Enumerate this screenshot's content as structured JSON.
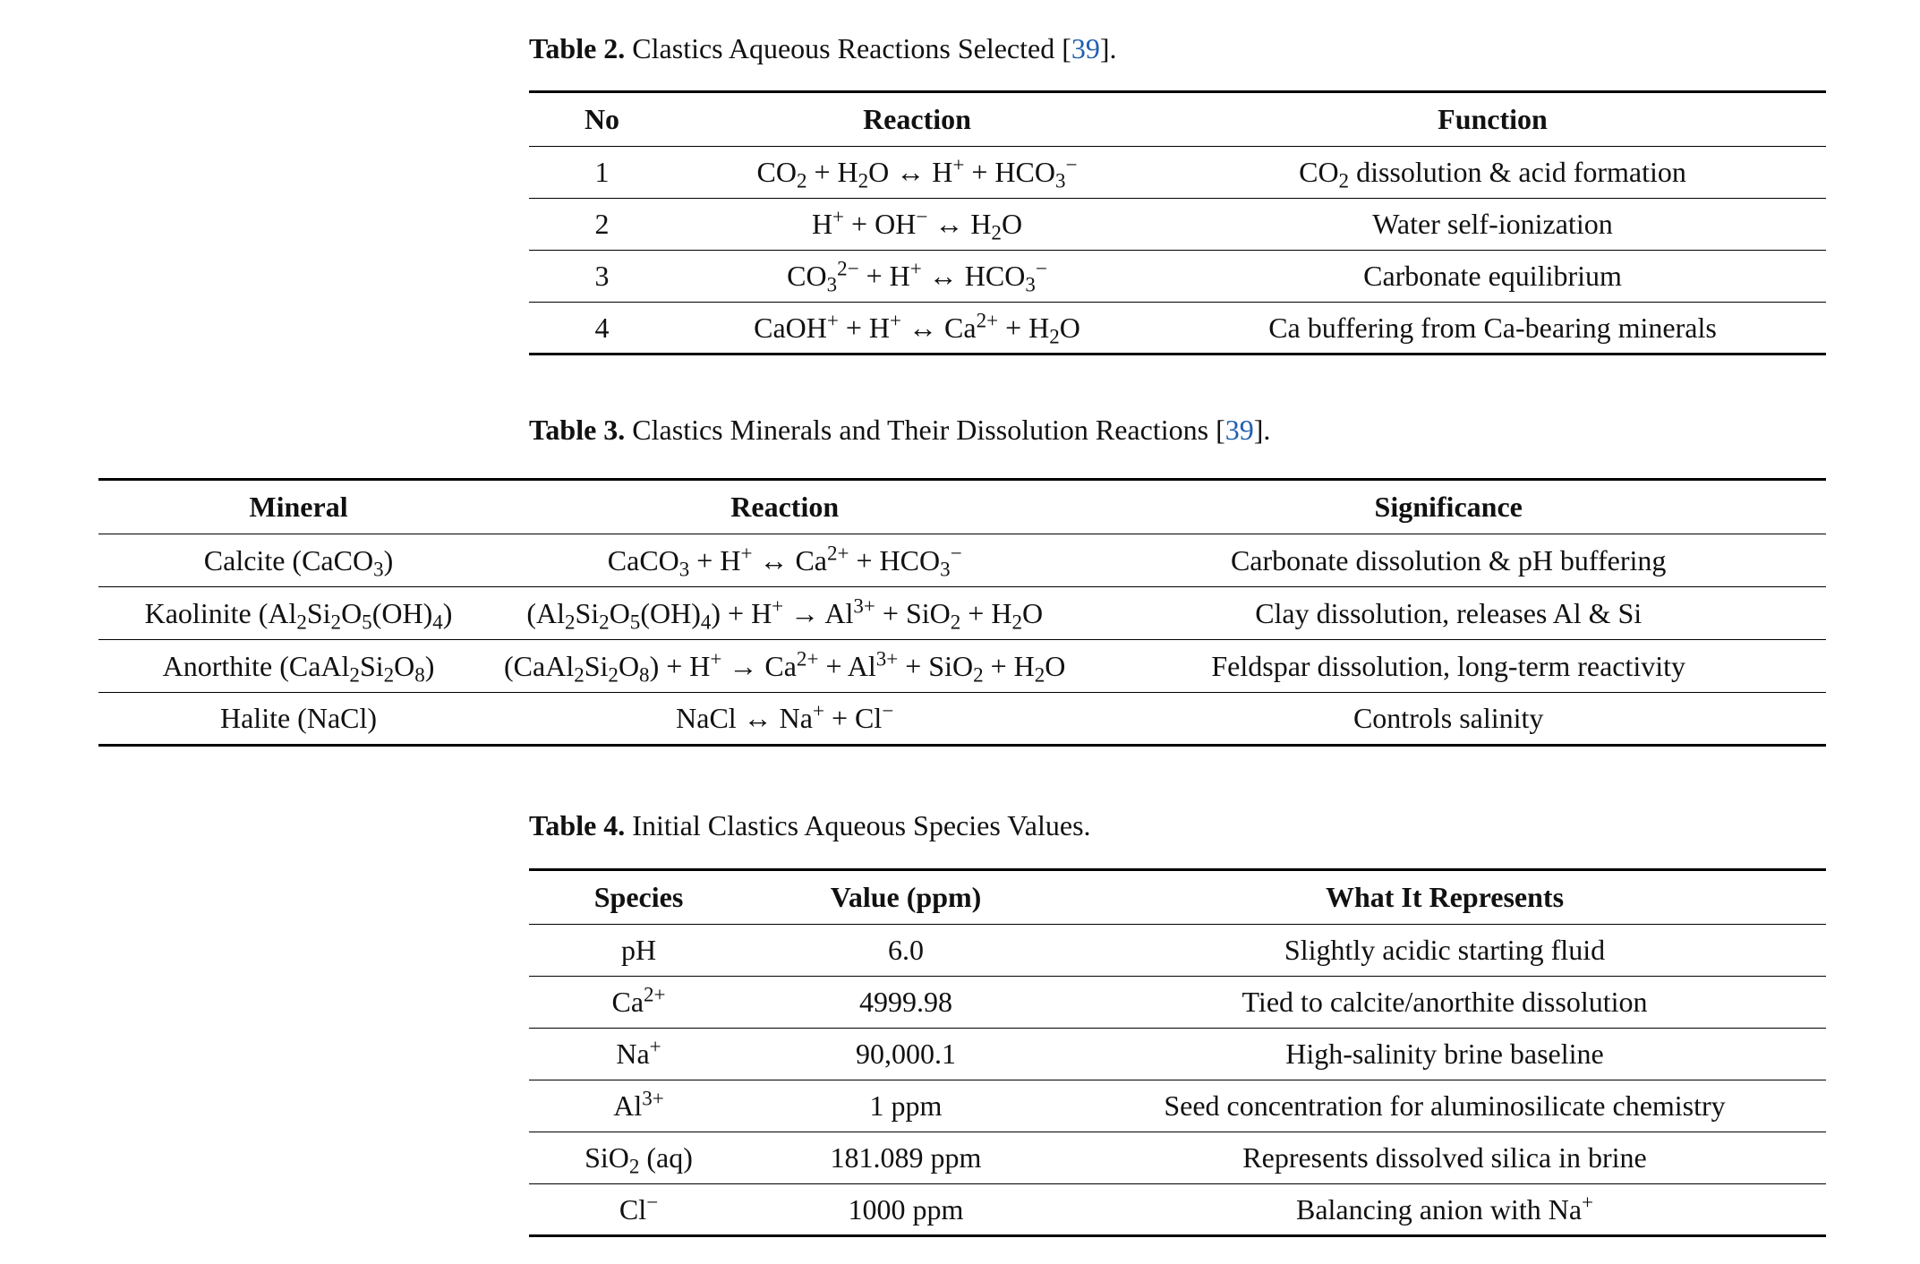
{
  "table2": {
    "caption_label": "Table 2.",
    "caption_text": "Clastics Aqueous Reactions Selected [",
    "caption_ref": "39",
    "caption_end": "].",
    "headers": [
      "No",
      "Reaction",
      "Function"
    ],
    "rows": [
      {
        "no": "1",
        "reaction": "CO<sub>2</sub> + H<sub>2</sub>O ↔ H<sup>+</sup> + HCO<sub>3</sub><sup>−</sup>",
        "function": "CO<sub>2</sub> dissolution &amp; acid formation"
      },
      {
        "no": "2",
        "reaction": "H<sup>+</sup> + OH<sup>−</sup> ↔ H<sub>2</sub>O",
        "function": "Water self-ionization"
      },
      {
        "no": "3",
        "reaction": "CO<sub>3</sub><sup>2−</sup> + H<sup>+</sup> ↔ HCO<sub>3</sub><sup>−</sup>",
        "function": "Carbonate equilibrium"
      },
      {
        "no": "4",
        "reaction": "CaOH<sup>+</sup> + H<sup>+</sup> ↔ Ca<sup>2+</sup> + H<sub>2</sub>O",
        "function": "Ca buffering from Ca-bearing minerals"
      }
    ]
  },
  "table3": {
    "caption_label": "Table 3.",
    "caption_text": "Clastics Minerals and Their Dissolution Reactions [",
    "caption_ref": "39",
    "caption_end": "].",
    "headers": [
      "Mineral",
      "Reaction",
      "Significance"
    ],
    "rows": [
      {
        "mineral": "Calcite (CaCO<sub>3</sub>)",
        "reaction": "CaCO<sub>3</sub> + H<sup>+</sup> ↔ Ca<sup>2+</sup> + HCO<sub>3</sub><sup>−</sup>",
        "significance": "Carbonate dissolution &amp; pH buffering"
      },
      {
        "mineral": "Kaolinite (Al<sub>2</sub>Si<sub>2</sub>O<sub>5</sub>(OH)<sub>4</sub>)",
        "reaction": "(Al<sub>2</sub>Si<sub>2</sub>O<sub>5</sub>(OH)<sub>4</sub>) + H<sup>+</sup> → Al<sup>3+</sup> + SiO<sub>2</sub> + H<sub>2</sub>O",
        "significance": "Clay dissolution, releases Al &amp; Si"
      },
      {
        "mineral": "Anorthite (CaAl<sub>2</sub>Si<sub>2</sub>O<sub>8</sub>)",
        "reaction": "(CaAl<sub>2</sub>Si<sub>2</sub>O<sub>8</sub>) + H<sup>+</sup> → Ca<sup>2+</sup> + Al<sup>3+</sup> + SiO<sub>2</sub> + H<sub>2</sub>O",
        "significance": "Feldspar dissolution, long-term reactivity"
      },
      {
        "mineral": "Halite (NaCl)",
        "reaction": "NaCl ↔ Na<sup>+</sup> + Cl<sup>−</sup>",
        "significance": "Controls salinity"
      }
    ]
  },
  "table4": {
    "caption_label": "Table 4.",
    "caption_text": "Initial Clastics Aqueous Species Values.",
    "headers": [
      "Species",
      "Value (ppm)",
      "What It Represents"
    ],
    "rows": [
      {
        "species": "pH",
        "value": "6.0",
        "represents": "Slightly acidic starting fluid"
      },
      {
        "species": "Ca<sup>2+</sup>",
        "value": "4999.98",
        "represents": "Tied to calcite/anorthite dissolution"
      },
      {
        "species": "Na<sup>+</sup>",
        "value": "90,000.1",
        "represents": "High-salinity brine baseline"
      },
      {
        "species": "Al<sup>3+</sup>",
        "value": "1 ppm",
        "represents": "Seed concentration for aluminosilicate chemistry"
      },
      {
        "species": "SiO<sub>2</sub> (aq)",
        "value": "181.089 ppm",
        "represents": "Represents dissolved silica in brine"
      },
      {
        "species": "Cl<sup>−</sup>",
        "value": "1000 ppm",
        "represents": "Balancing anion with Na<sup>+</sup>"
      }
    ]
  }
}
